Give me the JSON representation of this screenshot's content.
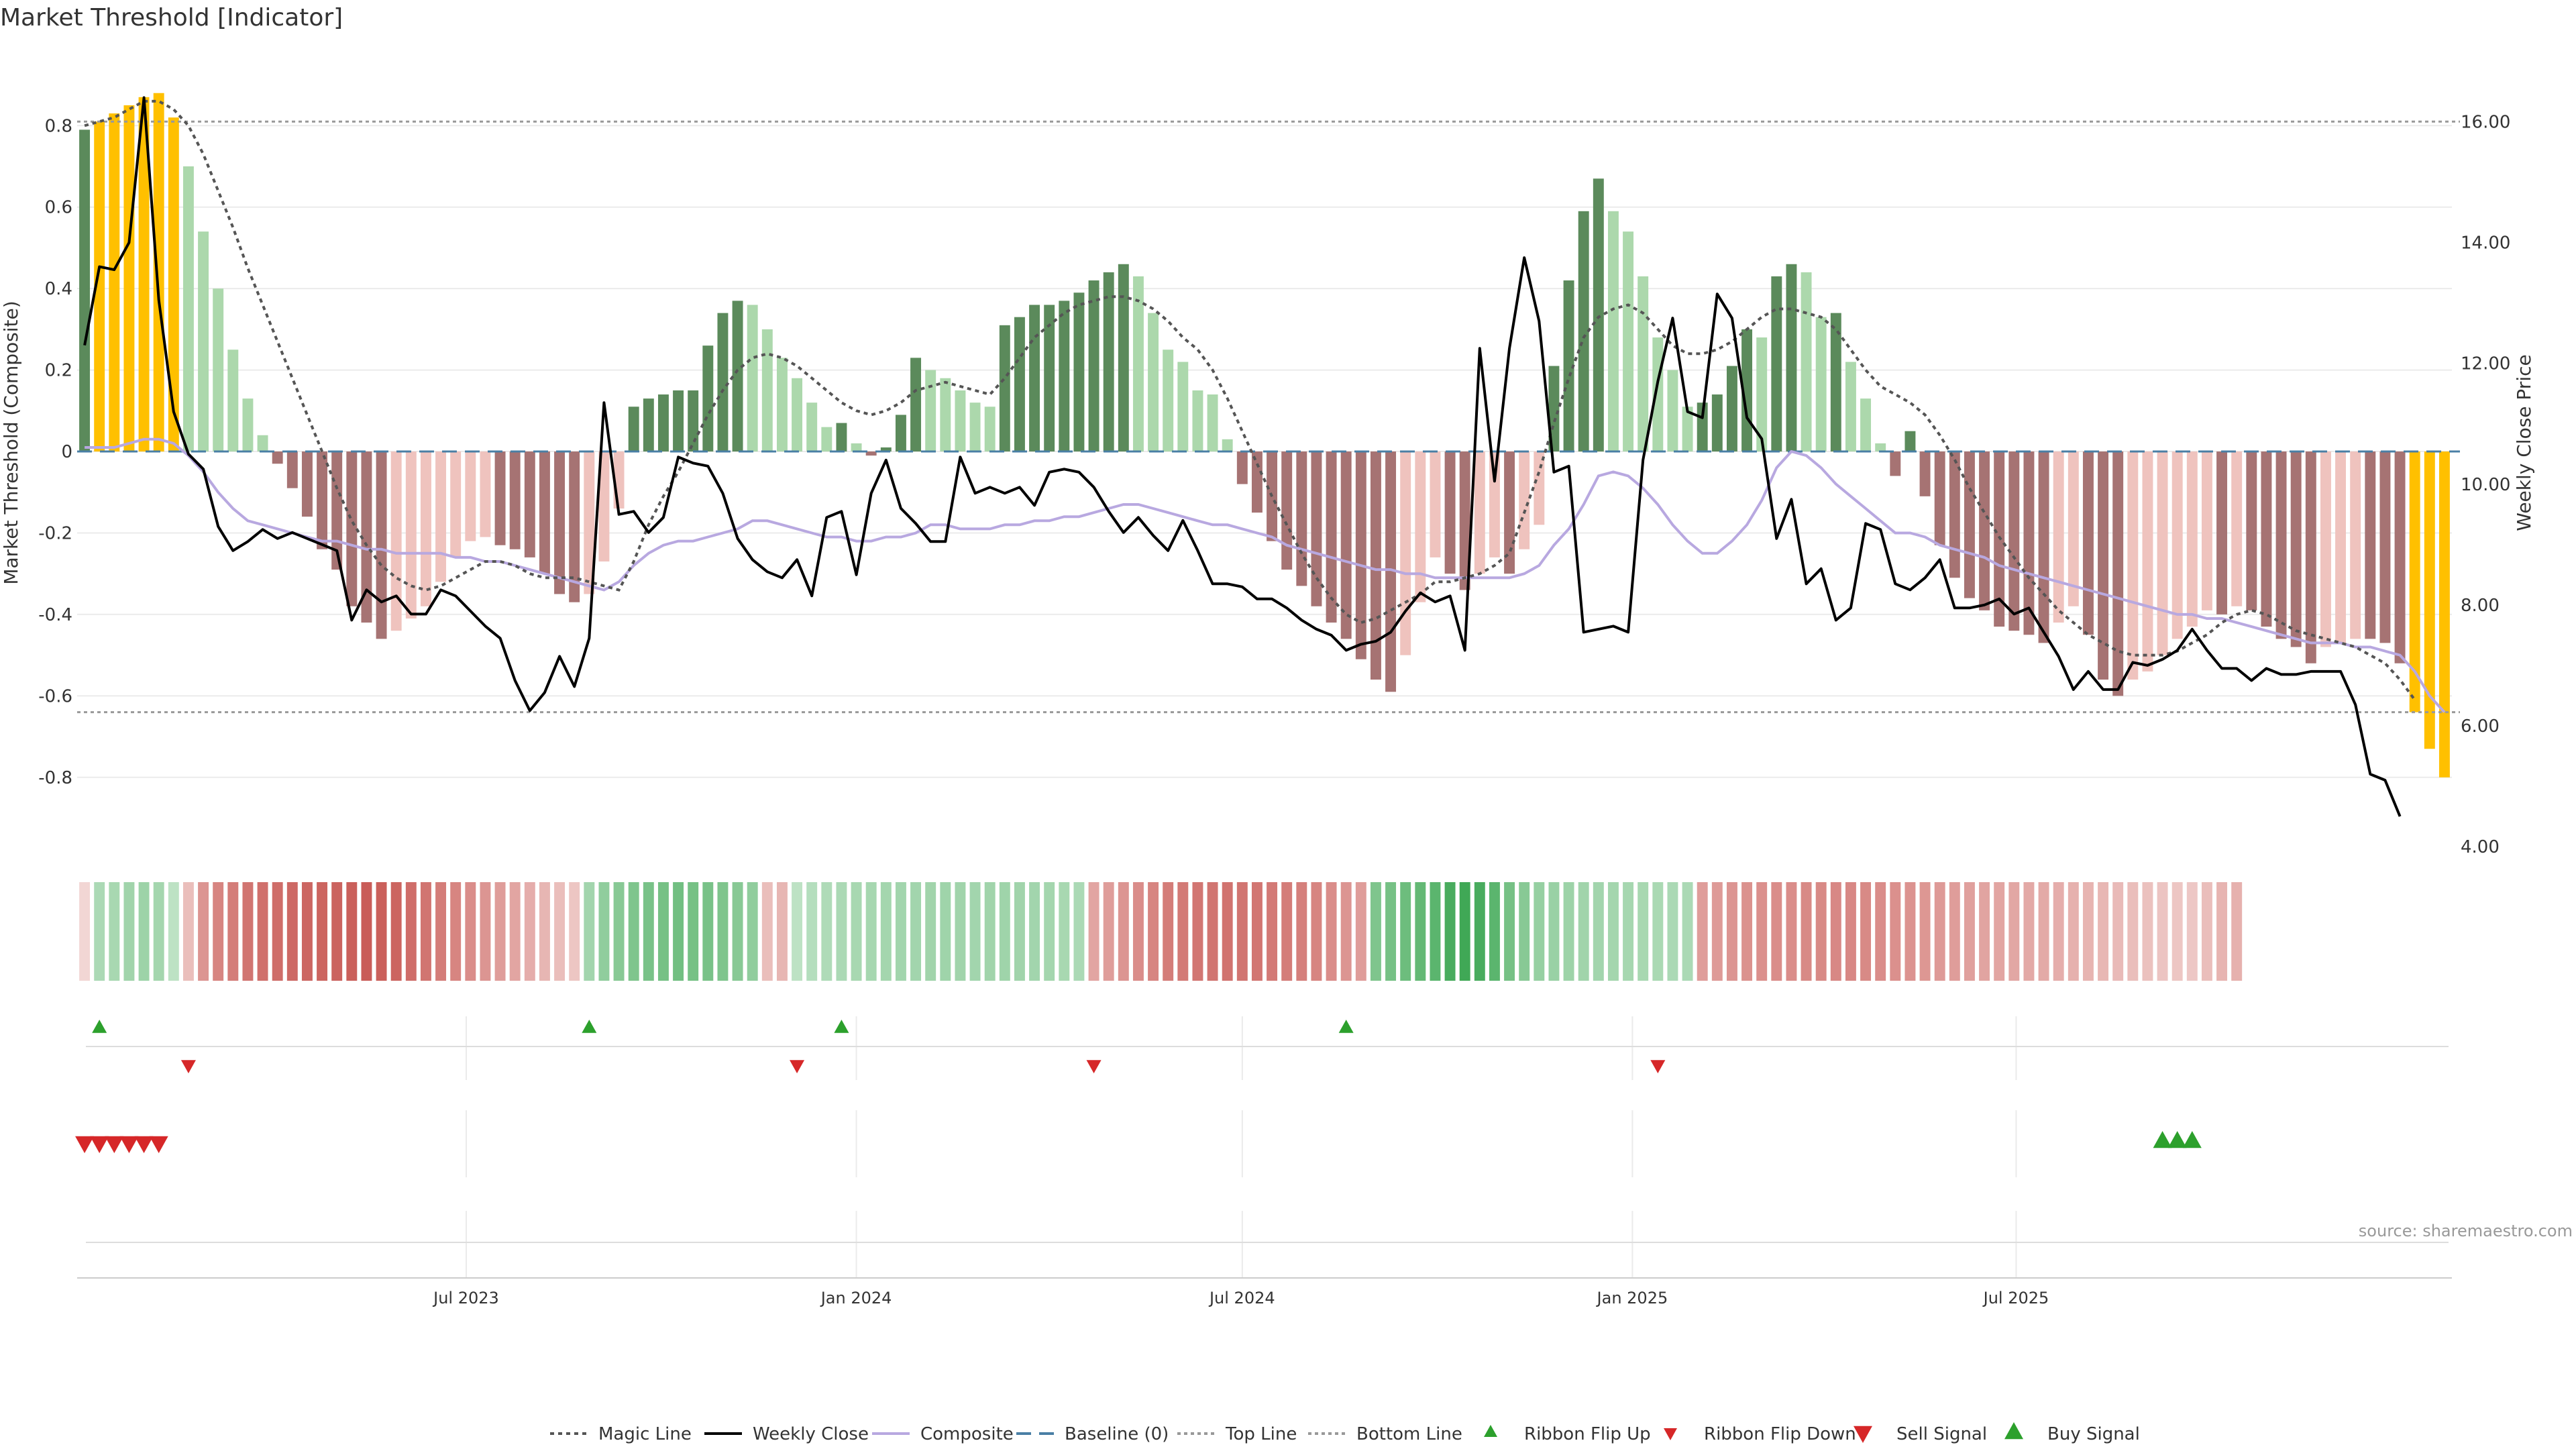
{
  "title": "Market Threshold [Indicator]",
  "source_note": "source: sharemaestro.com",
  "colors": {
    "extreme": "#FFC000",
    "pos_strong": "#5B8A5B",
    "pos_weak": "#ACD8AC",
    "neg_strong": "#A67373",
    "neg_weak": "#EFC3BE",
    "magic_line": "#555555",
    "weekly_close": "#000000",
    "composite": "#B8A8E0",
    "baseline": "#4A7FA5",
    "ref_lines": "#999999",
    "signal_up": "#2CA02C",
    "signal_down": "#D62728",
    "sell_signal": "#D62728",
    "buy_signal": "#2CA02C",
    "grid": "#EBEBEB",
    "axis_text": "#333333"
  },
  "chart_data": {
    "type": "bar",
    "title": "Market Threshold [Indicator]",
    "ylabel": "Market Threshold (Composite)",
    "ylabel_right": "Weekly Close Price",
    "ylim": [
      -0.97,
      0.98
    ],
    "ylim_right": [
      4.0,
      17.15
    ],
    "yticks": [
      -0.8,
      -0.6,
      -0.4,
      -0.2,
      0,
      0.2,
      0.4,
      0.6,
      0.8
    ],
    "yticks_right": [
      4.0,
      6.0,
      8.0,
      10.0,
      12.0,
      14.0,
      16.0
    ],
    "top_line": 0.81,
    "bottom_line": -0.64,
    "x_start": "2023-01-02",
    "x_step_days": 7,
    "x_ticks": [
      {
        "label": "Jul 2023",
        "date": "2023-07-01"
      },
      {
        "label": "Jan 2024",
        "date": "2024-01-01"
      },
      {
        "label": "Jul 2024",
        "date": "2024-07-01"
      },
      {
        "label": "Jan 2025",
        "date": "2025-01-01"
      },
      {
        "label": "Jul 2025",
        "date": "2025-07-01"
      }
    ],
    "composite": [
      0.79,
      0.81,
      0.83,
      0.85,
      0.87,
      0.88,
      0.82,
      0.7,
      0.54,
      0.4,
      0.25,
      0.13,
      0.04,
      -0.03,
      -0.09,
      -0.16,
      -0.24,
      -0.29,
      -0.38,
      -0.42,
      -0.46,
      -0.44,
      -0.41,
      -0.38,
      -0.32,
      -0.26,
      -0.22,
      -0.21,
      -0.23,
      -0.24,
      -0.26,
      -0.3,
      -0.35,
      -0.37,
      -0.35,
      -0.27,
      -0.14,
      0.11,
      0.13,
      0.14,
      0.15,
      0.15,
      0.26,
      0.34,
      0.37,
      0.36,
      0.3,
      0.23,
      0.18,
      0.12,
      0.06,
      0.07,
      0.02,
      -0.01,
      0.01,
      0.09,
      0.23,
      0.2,
      0.18,
      0.15,
      0.12,
      0.11,
      0.31,
      0.33,
      0.36,
      0.36,
      0.37,
      0.39,
      0.42,
      0.44,
      0.46,
      0.43,
      0.34,
      0.25,
      0.22,
      0.15,
      0.14,
      0.03,
      -0.08,
      -0.15,
      -0.22,
      -0.29,
      -0.33,
      -0.38,
      -0.42,
      -0.46,
      -0.51,
      -0.56,
      -0.59,
      -0.5,
      -0.37,
      -0.26,
      -0.3,
      -0.34,
      -0.3,
      -0.26,
      -0.3,
      -0.24,
      -0.18,
      0.21,
      0.42,
      0.59,
      0.67,
      0.59,
      0.54,
      0.43,
      0.28,
      0.2,
      0.11,
      0.12,
      0.14,
      0.21,
      0.3,
      0.28,
      0.43,
      0.46,
      0.44,
      0.33,
      0.34,
      0.22,
      0.13,
      0.02,
      -0.06,
      0.05,
      -0.11,
      -0.23,
      -0.31,
      -0.36,
      -0.39,
      -0.43,
      -0.44,
      -0.45,
      -0.47,
      -0.42,
      -0.38,
      -0.45,
      -0.56,
      -0.6,
      -0.56,
      -0.54,
      -0.5,
      -0.46,
      -0.43,
      -0.39,
      -0.4,
      -0.38,
      -0.39,
      -0.43,
      -0.46,
      -0.48,
      -0.52,
      -0.48,
      -0.47,
      -0.46,
      -0.46,
      -0.47,
      -0.52,
      -0.64,
      -0.73,
      -0.8
    ],
    "magic_line": [
      0.8,
      0.81,
      0.82,
      0.84,
      0.86,
      0.86,
      0.84,
      0.8,
      0.73,
      0.64,
      0.55,
      0.45,
      0.36,
      0.27,
      0.18,
      0.09,
      0.0,
      -0.09,
      -0.17,
      -0.23,
      -0.28,
      -0.31,
      -0.33,
      -0.34,
      -0.33,
      -0.31,
      -0.29,
      -0.27,
      -0.27,
      -0.28,
      -0.3,
      -0.31,
      -0.31,
      -0.31,
      -0.32,
      -0.33,
      -0.34,
      -0.27,
      -0.18,
      -0.11,
      -0.05,
      0.02,
      0.09,
      0.15,
      0.2,
      0.23,
      0.24,
      0.23,
      0.21,
      0.18,
      0.15,
      0.12,
      0.1,
      0.09,
      0.1,
      0.12,
      0.15,
      0.16,
      0.17,
      0.16,
      0.15,
      0.14,
      0.18,
      0.23,
      0.28,
      0.31,
      0.34,
      0.36,
      0.37,
      0.38,
      0.38,
      0.37,
      0.35,
      0.32,
      0.28,
      0.25,
      0.2,
      0.13,
      0.05,
      -0.03,
      -0.11,
      -0.18,
      -0.25,
      -0.31,
      -0.36,
      -0.4,
      -0.42,
      -0.41,
      -0.39,
      -0.37,
      -0.35,
      -0.32,
      -0.32,
      -0.31,
      -0.3,
      -0.28,
      -0.25,
      -0.15,
      -0.05,
      0.07,
      0.18,
      0.28,
      0.33,
      0.35,
      0.36,
      0.34,
      0.3,
      0.26,
      0.24,
      0.24,
      0.25,
      0.27,
      0.3,
      0.33,
      0.35,
      0.35,
      0.34,
      0.33,
      0.3,
      0.25,
      0.2,
      0.16,
      0.14,
      0.12,
      0.09,
      0.04,
      -0.02,
      -0.09,
      -0.15,
      -0.21,
      -0.26,
      -0.31,
      -0.35,
      -0.39,
      -0.42,
      -0.45,
      -0.47,
      -0.49,
      -0.5,
      -0.5,
      -0.5,
      -0.49,
      -0.47,
      -0.45,
      -0.42,
      -0.4,
      -0.39,
      -0.4,
      -0.42,
      -0.44,
      -0.45,
      -0.46,
      -0.47,
      -0.48,
      -0.5,
      -0.52,
      -0.56,
      -0.61
    ],
    "composite_smooth": [
      0.01,
      0.01,
      0.01,
      0.02,
      0.03,
      0.03,
      0.02,
      -0.01,
      -0.05,
      -0.1,
      -0.14,
      -0.17,
      -0.18,
      -0.19,
      -0.2,
      -0.21,
      -0.22,
      -0.22,
      -0.23,
      -0.24,
      -0.24,
      -0.25,
      -0.25,
      -0.25,
      -0.25,
      -0.26,
      -0.26,
      -0.27,
      -0.27,
      -0.28,
      -0.29,
      -0.3,
      -0.31,
      -0.32,
      -0.33,
      -0.34,
      -0.32,
      -0.28,
      -0.25,
      -0.23,
      -0.22,
      -0.22,
      -0.21,
      -0.2,
      -0.19,
      -0.17,
      -0.17,
      -0.18,
      -0.19,
      -0.2,
      -0.21,
      -0.21,
      -0.22,
      -0.22,
      -0.21,
      -0.21,
      -0.2,
      -0.18,
      -0.18,
      -0.19,
      -0.19,
      -0.19,
      -0.18,
      -0.18,
      -0.17,
      -0.17,
      -0.16,
      -0.16,
      -0.15,
      -0.14,
      -0.13,
      -0.13,
      -0.14,
      -0.15,
      -0.16,
      -0.17,
      -0.18,
      -0.18,
      -0.19,
      -0.2,
      -0.21,
      -0.23,
      -0.24,
      -0.25,
      -0.26,
      -0.27,
      -0.28,
      -0.29,
      -0.29,
      -0.3,
      -0.3,
      -0.31,
      -0.31,
      -0.31,
      -0.31,
      -0.31,
      -0.31,
      -0.3,
      -0.28,
      -0.23,
      -0.19,
      -0.13,
      -0.06,
      -0.05,
      -0.06,
      -0.09,
      -0.13,
      -0.18,
      -0.22,
      -0.25,
      -0.25,
      -0.22,
      -0.18,
      -0.12,
      -0.04,
      -0.0,
      -0.01,
      -0.04,
      -0.08,
      -0.11,
      -0.14,
      -0.17,
      -0.2,
      -0.2,
      -0.21,
      -0.23,
      -0.24,
      -0.25,
      -0.26,
      -0.28,
      -0.29,
      -0.3,
      -0.31,
      -0.32,
      -0.33,
      -0.34,
      -0.35,
      -0.36,
      -0.37,
      -0.38,
      -0.39,
      -0.4,
      -0.4,
      -0.41,
      -0.41,
      -0.42,
      -0.43,
      -0.44,
      -0.45,
      -0.46,
      -0.47,
      -0.47,
      -0.47,
      -0.48,
      -0.48,
      -0.49,
      -0.5,
      -0.54,
      -0.6,
      -0.64
    ],
    "weekly_close": [
      12.3,
      13.6,
      13.55,
      14.0,
      16.4,
      13.05,
      11.2,
      10.5,
      10.25,
      9.3,
      8.9,
      9.05,
      9.25,
      9.1,
      9.2,
      9.1,
      9.0,
      8.9,
      7.75,
      8.25,
      8.05,
      8.15,
      7.85,
      7.85,
      8.25,
      8.15,
      7.9,
      7.65,
      7.45,
      6.75,
      6.25,
      6.55,
      7.15,
      6.65,
      7.45,
      11.35,
      9.5,
      9.55,
      9.2,
      9.45,
      10.45,
      10.35,
      10.3,
      9.85,
      9.1,
      8.75,
      8.55,
      8.45,
      8.75,
      8.15,
      9.45,
      9.55,
      8.5,
      9.85,
      10.4,
      9.6,
      9.35,
      9.05,
      9.05,
      10.45,
      9.85,
      9.95,
      9.85,
      9.95,
      9.65,
      10.2,
      10.25,
      10.2,
      9.95,
      9.55,
      9.2,
      9.45,
      9.15,
      8.9,
      9.4,
      8.9,
      8.35,
      8.35,
      8.3,
      8.1,
      8.1,
      7.95,
      7.75,
      7.6,
      7.5,
      7.25,
      7.35,
      7.4,
      7.55,
      7.9,
      8.2,
      8.05,
      8.15,
      7.25,
      12.25,
      10.05,
      12.25,
      13.75,
      12.7,
      10.2,
      10.3,
      7.55,
      7.6,
      7.65,
      7.55,
      10.4,
      11.7,
      12.75,
      11.2,
      11.1,
      13.15,
      12.75,
      11.1,
      10.75,
      9.1,
      9.75,
      8.35,
      8.6,
      7.75,
      7.95,
      9.35,
      9.25,
      8.35,
      8.25,
      8.45,
      8.75,
      7.95,
      7.95,
      8.0,
      8.1,
      7.85,
      7.95,
      7.55,
      7.15,
      6.6,
      6.9,
      6.6,
      6.6,
      7.05,
      7.0,
      7.1,
      7.25,
      7.6,
      7.25,
      6.95,
      6.95,
      6.75,
      6.95,
      6.85,
      6.85,
      6.9,
      6.9,
      6.9,
      6.35,
      5.2,
      5.1,
      4.5
    ],
    "ribbon": [
      -0.05,
      0.3,
      0.32,
      0.36,
      0.38,
      0.34,
      0.2,
      -0.2,
      -0.45,
      -0.55,
      -0.6,
      -0.65,
      -0.68,
      -0.7,
      -0.72,
      -0.74,
      -0.75,
      -0.76,
      -0.78,
      -0.8,
      -0.78,
      -0.75,
      -0.7,
      -0.65,
      -0.6,
      -0.55,
      -0.5,
      -0.45,
      -0.4,
      -0.35,
      -0.3,
      -0.25,
      -0.2,
      -0.15,
      0.35,
      0.45,
      0.5,
      0.55,
      0.58,
      0.6,
      0.62,
      0.6,
      0.58,
      0.55,
      0.5,
      0.45,
      -0.2,
      -0.25,
      0.2,
      0.25,
      0.28,
      0.3,
      0.32,
      0.33,
      0.34,
      0.35,
      0.35,
      0.36,
      0.37,
      0.36,
      0.35,
      0.36,
      0.37,
      0.36,
      0.35,
      0.34,
      0.32,
      0.3,
      -0.35,
      -0.4,
      -0.45,
      -0.5,
      -0.55,
      -0.6,
      -0.62,
      -0.64,
      -0.65,
      -0.66,
      -0.65,
      -0.64,
      -0.62,
      -0.6,
      -0.58,
      -0.55,
      -0.5,
      -0.45,
      -0.4,
      0.55,
      0.6,
      0.65,
      0.7,
      0.75,
      0.85,
      0.9,
      0.85,
      0.75,
      0.6,
      0.5,
      0.42,
      0.4,
      0.38,
      0.36,
      0.35,
      0.34,
      0.33,
      0.32,
      0.31,
      0.3,
      0.3,
      -0.4,
      -0.42,
      -0.45,
      -0.47,
      -0.48,
      -0.5,
      -0.5,
      -0.52,
      -0.52,
      -0.53,
      -0.53,
      -0.52,
      -0.5,
      -0.48,
      -0.46,
      -0.44,
      -0.42,
      -0.4,
      -0.38,
      -0.36,
      -0.35,
      -0.34,
      -0.33,
      -0.32,
      -0.3,
      -0.28,
      -0.26,
      -0.24,
      -0.22,
      -0.2,
      -0.18,
      -0.16,
      -0.15,
      -0.14,
      -0.2,
      -0.26,
      -0.28
    ],
    "ribbon_flip_up": [
      1,
      34,
      51,
      85
    ],
    "ribbon_flip_down": [
      7,
      48,
      68,
      106
    ],
    "sell_signal": [
      0,
      1,
      2,
      3,
      4,
      5
    ],
    "buy_signal": [
      140,
      141,
      142
    ],
    "legend": [
      {
        "label": "Magic Line",
        "style": "dotted"
      },
      {
        "label": "Weekly Close",
        "style": "solid"
      },
      {
        "label": "Composite",
        "style": "solid-light"
      },
      {
        "label": "Baseline (0)",
        "style": "dashed"
      },
      {
        "label": "Top Line",
        "style": "dotted-light"
      },
      {
        "label": "Bottom Line",
        "style": "dotted-light"
      },
      {
        "label": "Ribbon Flip Up",
        "style": "triangle-up"
      },
      {
        "label": "Ribbon Flip Down",
        "style": "triangle-down"
      },
      {
        "label": "Sell Signal",
        "style": "triangle-down-big"
      },
      {
        "label": "Buy Signal",
        "style": "triangle-up-big"
      }
    ],
    "legend_position": "bottom-center",
    "grid": true
  }
}
